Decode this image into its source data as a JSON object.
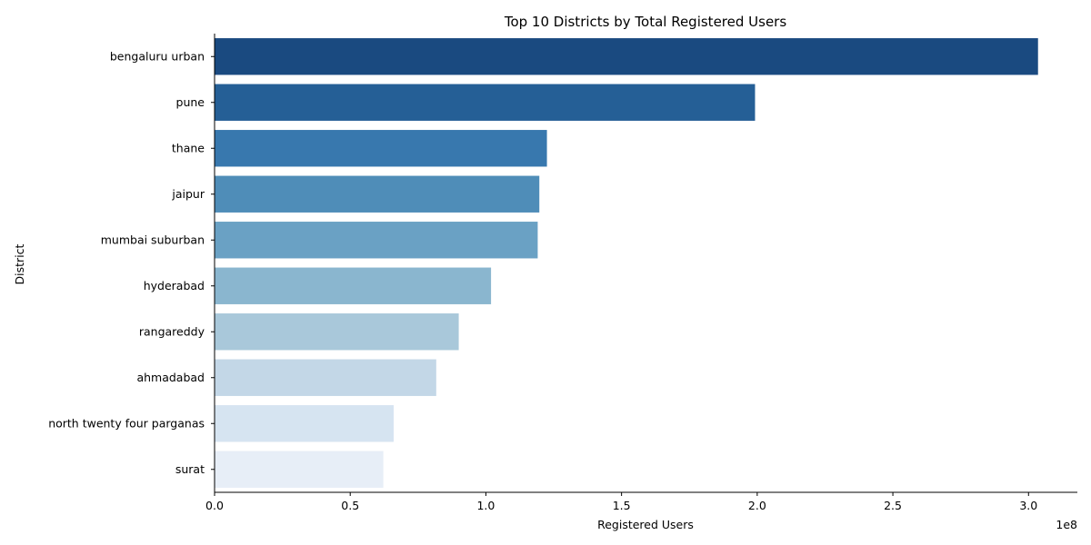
{
  "chart_data": {
    "type": "bar",
    "orientation": "horizontal",
    "title": "Top 10 Districts by Total Registered Users",
    "xlabel": "Registered Users",
    "ylabel": "District",
    "x_scale_label": "1e8",
    "x_scale_factor": 100000000,
    "xlim": [
      0,
      318000000
    ],
    "x_ticks": [
      0,
      50000000,
      100000000,
      150000000,
      200000000,
      250000000,
      300000000
    ],
    "x_tick_labels": [
      "0.0",
      "0.5",
      "1.0",
      "1.5",
      "2.0",
      "2.5",
      "3.0"
    ],
    "grid": false,
    "legend": "none",
    "categories": [
      "bengaluru urban",
      "pune",
      "thane",
      "jaipur",
      "mumbai suburban",
      "hyderabad",
      "rangareddy",
      "ahmadabad",
      "north twenty four parganas",
      "surat"
    ],
    "values": [
      303500000,
      199200000,
      122500000,
      119700000,
      119100000,
      101900000,
      90000000,
      81700000,
      66000000,
      62200000
    ],
    "colors": [
      "#1a4a80",
      "#255f96",
      "#3878ae",
      "#4f8db8",
      "#6aa1c4",
      "#8ab6cf",
      "#a9c8da",
      "#c3d7e7",
      "#d6e4f1",
      "#e7eef7"
    ]
  }
}
